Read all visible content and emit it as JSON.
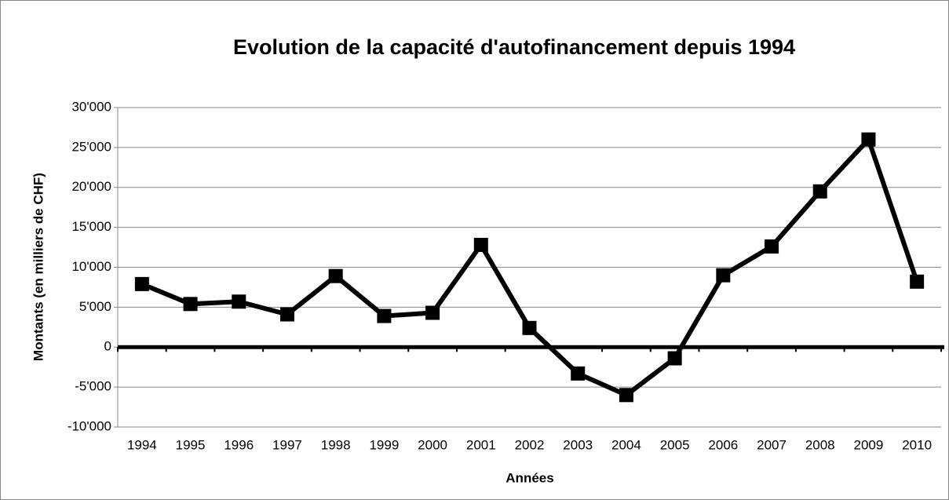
{
  "chart_data": {
    "type": "line",
    "title": "Evolution de la capacité d'autofinancement depuis 1994",
    "x_label": "Années",
    "y_label": "Montants (en milliers de CHF)",
    "categories": [
      "1994",
      "1995",
      "1996",
      "1997",
      "1998",
      "1999",
      "2000",
      "2001",
      "2002",
      "2003",
      "2004",
      "2005",
      "2006",
      "2007",
      "2008",
      "2009",
      "2010"
    ],
    "values": [
      7900,
      5400,
      5700,
      4100,
      8900,
      3900,
      4300,
      12800,
      2400,
      -3300,
      -6000,
      -1400,
      9000,
      12600,
      19500,
      26000,
      8200
    ],
    "color": "#000000",
    "ylim": [
      -10000,
      30000
    ],
    "yticks": [
      {
        "value": -10000,
        "label": "-10'000"
      },
      {
        "value": -5000,
        "label": "-5'000"
      },
      0,
      {
        "value": 5000,
        "label": "5'000"
      },
      {
        "value": 10000,
        "label": "10'000"
      },
      {
        "value": 15000,
        "label": "15'000"
      },
      {
        "value": 20000,
        "label": "20'000"
      },
      {
        "value": 25000,
        "label": "25'000"
      },
      {
        "value": 30000,
        "label": "30'000"
      }
    ],
    "grid": true
  }
}
